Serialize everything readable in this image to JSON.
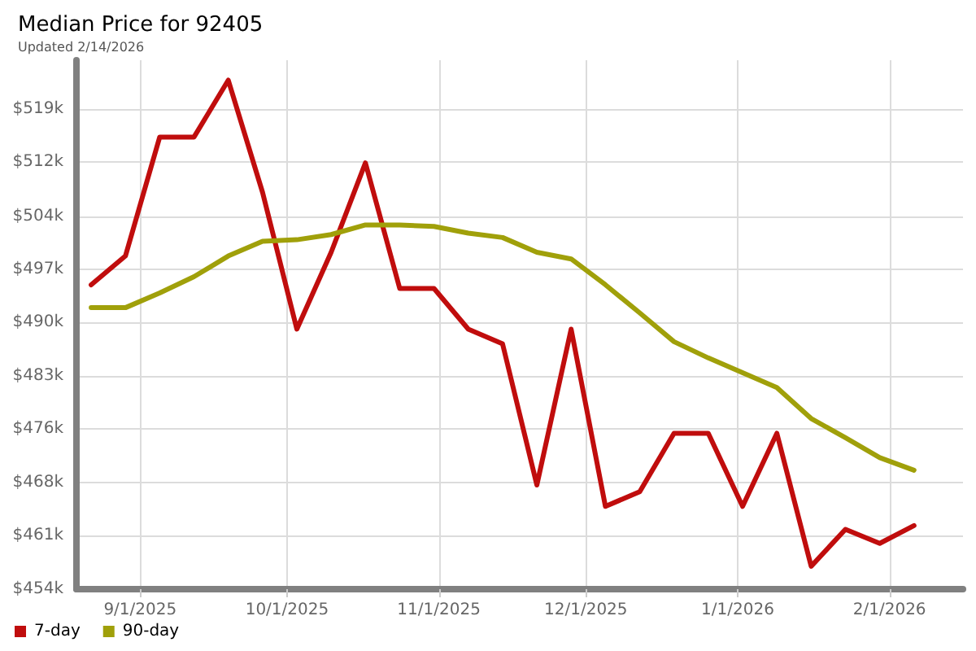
{
  "chart_data": {
    "type": "line",
    "title": "Median Price for 92405",
    "subtitle": "Updated 2/14/2026",
    "x": [
      "2025-08-22",
      "2025-08-29",
      "2025-09-05",
      "2025-09-12",
      "2025-09-19",
      "2025-09-26",
      "2025-10-03",
      "2025-10-10",
      "2025-10-17",
      "2025-10-24",
      "2025-10-31",
      "2025-11-07",
      "2025-11-14",
      "2025-11-21",
      "2025-11-28",
      "2025-12-05",
      "2025-12-12",
      "2025-12-19",
      "2025-12-26",
      "2026-01-02",
      "2026-01-09",
      "2026-01-16",
      "2026-01-23",
      "2026-01-30",
      "2026-02-06"
    ],
    "series": [
      {
        "name": "7-day",
        "color": "#c00d0d",
        "values": [
          495.2,
          499.1,
          515.2,
          515.2,
          522.9,
          507.7,
          489.2,
          499.6,
          511.7,
          494.7,
          494.7,
          489.2,
          487.2,
          468.1,
          489.2,
          465.2,
          467.2,
          475.1,
          475.1,
          465.2,
          475.1,
          457.1,
          462.1,
          460.2,
          462.6
        ]
      },
      {
        "name": "90-day",
        "color": "#a0a00a",
        "values": [
          492.1,
          492.1,
          494.1,
          496.3,
          499.1,
          501.1,
          501.3,
          502.0,
          503.3,
          503.3,
          503.1,
          502.2,
          501.6,
          499.6,
          498.7,
          495.2,
          491.4,
          487.5,
          485.3,
          483.3,
          481.3,
          477.1,
          474.5,
          471.8,
          470.1
        ]
      }
    ],
    "xlim": [
      "2025-08-19",
      "2026-02-16"
    ],
    "xticks": [
      {
        "value": "2025-09-01",
        "label": "9/1/2025"
      },
      {
        "value": "2025-10-01",
        "label": "10/1/2025"
      },
      {
        "value": "2025-11-01",
        "label": "11/1/2025"
      },
      {
        "value": "2025-12-01",
        "label": "12/1/2025"
      },
      {
        "value": "2026-01-01",
        "label": "1/1/2026"
      },
      {
        "value": "2026-02-01",
        "label": "2/1/2026"
      }
    ],
    "ylim": [
      454,
      525.6
    ],
    "yticks": [
      {
        "value": 454,
        "label": "$454k"
      },
      {
        "value": 461.22,
        "label": "$461k"
      },
      {
        "value": 468.44,
        "label": "$468k"
      },
      {
        "value": 475.67,
        "label": "$476k"
      },
      {
        "value": 482.89,
        "label": "$483k"
      },
      {
        "value": 490.11,
        "label": "$490k"
      },
      {
        "value": 497.33,
        "label": "$497k"
      },
      {
        "value": 504.4,
        "label": "$504k"
      },
      {
        "value": 511.78,
        "label": "$512k"
      },
      {
        "value": 519,
        "label": "$519k"
      }
    ],
    "grid": true,
    "legend": "bottom left",
    "marker": "none",
    "line_style": "solid"
  }
}
